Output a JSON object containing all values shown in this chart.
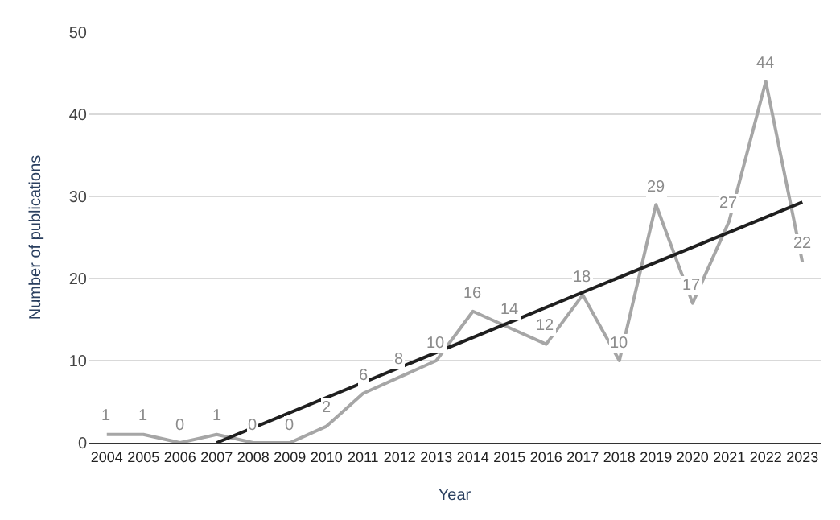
{
  "chart_data": {
    "type": "line",
    "xlabel": "Year",
    "ylabel": "Number of publications",
    "x": [
      2004,
      2005,
      2006,
      2007,
      2008,
      2009,
      2010,
      2011,
      2012,
      2013,
      2014,
      2015,
      2016,
      2017,
      2018,
      2019,
      2020,
      2021,
      2022,
      2023
    ],
    "series": [
      {
        "color": "#a6a6a6",
        "values": [
          1,
          1,
          0,
          1,
          0,
          0,
          2,
          6,
          8,
          10,
          16,
          14,
          12,
          18,
          10,
          29,
          17,
          27,
          44,
          22
        ]
      },
      {
        "type": "line",
        "color": "#1f1f1f",
        "x": [
          2007,
          2023
        ],
        "values": [
          0,
          29.3
        ],
        "data_labels": false
      }
    ],
    "data_labels": true,
    "xlim": [
      2003.5,
      2023.5
    ],
    "xticks": [
      2004,
      2005,
      2006,
      2007,
      2008,
      2009,
      2010,
      2011,
      2012,
      2013,
      2014,
      2015,
      2016,
      2017,
      2018,
      2019,
      2020,
      2021,
      2022,
      2023
    ],
    "ylim": [
      0,
      50
    ],
    "yticks": [
      0,
      10,
      20,
      30,
      40,
      50
    ],
    "grid": "y",
    "legend": false,
    "marker": "none",
    "line_style": "solid"
  }
}
